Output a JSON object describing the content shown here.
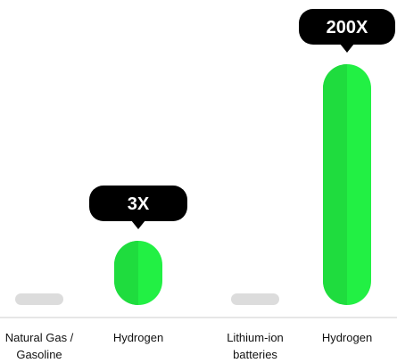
{
  "chart_data": {
    "type": "bar",
    "categories": [
      "Natural Gas /\nGasoline",
      "Hydrogen",
      "Lithium-ion\nbatteries",
      "Hydrogen"
    ],
    "values": [
      0,
      3,
      0,
      200
    ],
    "data_labels": [
      "",
      "3X",
      "",
      "200X"
    ],
    "title": "",
    "xlabel": "",
    "ylabel": "",
    "grid": false,
    "legend": "none"
  },
  "colors": {
    "bar": "#22f044",
    "bar_highlight": "#1fdc3e",
    "baseline_bar": "#dcdcdc",
    "callout": "#000000",
    "callout_text": "#ffffff",
    "axis": "#cccccc"
  }
}
